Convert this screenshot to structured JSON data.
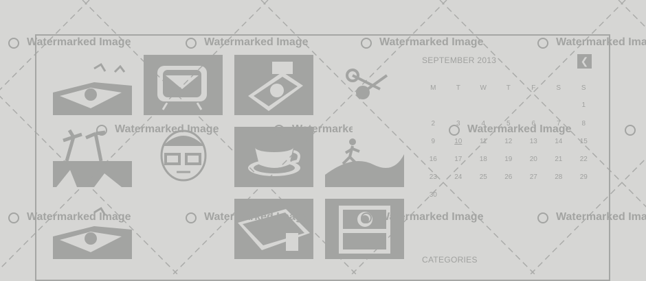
{
  "watermark": {
    "text": "Watermarked Image"
  },
  "calendar": {
    "month_title": "SEPTEMBER 2013",
    "prev_icon": "chevron-left-icon",
    "weekdays": [
      "M",
      "T",
      "W",
      "T",
      "F",
      "S",
      "S"
    ],
    "weeks": [
      [
        "",
        "",
        "",
        "",
        "",
        "",
        "1"
      ],
      [
        "2",
        "3",
        "4",
        "5",
        "6",
        "7",
        "8"
      ],
      [
        "9",
        "10",
        "11",
        "12",
        "13",
        "14",
        "15"
      ],
      [
        "16",
        "17",
        "18",
        "19",
        "20",
        "21",
        "22"
      ],
      [
        "23",
        "24",
        "25",
        "26",
        "27",
        "28",
        "29"
      ],
      [
        "30",
        "",
        "",
        "",
        "",
        "",
        ""
      ]
    ],
    "today": "10"
  },
  "sidebar": {
    "categories_title": "CATEGORIES"
  },
  "gallery": {
    "items": [
      "travel-map-icon",
      "retro-tv-icon",
      "record-player-icon",
      "scissors-icon",
      "palm-trees-icon",
      "man-with-glasses-icon",
      "coffee-cup-icon",
      "runner-icon",
      "travel-map-icon",
      "",
      "briefcase-icon",
      "camera-icon"
    ]
  }
}
